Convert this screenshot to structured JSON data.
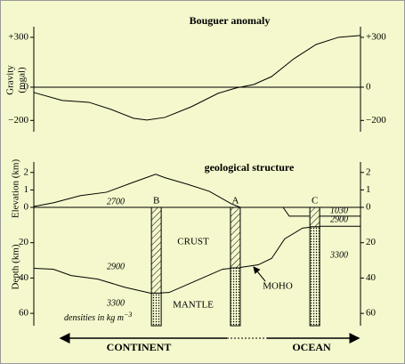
{
  "chart_data": [
    {
      "type": "line",
      "title": "Bouguer anomaly",
      "ylabel": [
        "Gravity",
        "(mgal)"
      ],
      "x": [
        0,
        8.7,
        16.9,
        23.7,
        30.5,
        34.6,
        40.1,
        48.2,
        56.4,
        61.9,
        67.3,
        72.8,
        79.6,
        86.4,
        93.2,
        100
      ],
      "series": [
        {
          "color": "#000000",
          "values": [
            -32,
            -80,
            -91,
            -134,
            -187,
            -198,
            -182,
            -118,
            -37,
            -5,
            16,
            64,
            171,
            257,
            300,
            311
          ]
        }
      ],
      "xlim": [
        0,
        100
      ],
      "ylim": [
        -268,
        364
      ],
      "yticks": [
        {
          "value": 300,
          "label": "+300"
        },
        0,
        {
          "value": -200,
          "label": "−200"
        }
      ]
    },
    {
      "type": "line",
      "title": "geological structure",
      "ylabel": "Elevation (km)",
      "x": [
        0,
        6,
        14.2,
        22.3,
        30.5,
        37.3,
        40.1,
        46.9,
        53.7,
        60.5,
        63.2,
        68.7
      ],
      "series": [
        {
          "color": "#000000",
          "values": [
            0.05,
            0.26,
            0.67,
            0.87,
            1.44,
            1.9,
            1.7,
            1.33,
            0.92,
            0.2,
            0,
            0
          ]
        }
      ],
      "xlim": [
        0,
        100
      ],
      "ylim": [
        0,
        2.6
      ],
      "yticks": [
        2,
        1,
        0
      ]
    },
    {
      "type": "depth",
      "ylabel": "Depth (km)",
      "series": [
        {
          "color": "#000000",
          "x": [
            0,
            6,
            11.4,
            19.6,
            27.8,
            36,
            41.4,
            49.6,
            57.8,
            63.2,
            68.7,
            72.8,
            76.8,
            82.3,
            87.7,
            100
          ],
          "values": [
            34.5,
            35,
            38.6,
            40.6,
            45.2,
            48.7,
            48.2,
            41.6,
            35,
            34,
            32.5,
            28.9,
            17.8,
            11.7,
            10.7,
            10.7
          ]
        },
        {
          "color": "#000000",
          "x": [
            68.7,
            76.3,
            78.2,
            100
          ],
          "values": [
            0,
            0,
            5,
            5
          ]
        }
      ],
      "xlim": [
        0,
        100
      ],
      "ylim": [
        0,
        67
      ],
      "yticks": [
        20,
        40,
        60
      ],
      "wells": [
        {
          "label": "B",
          "x": 37.5
        },
        {
          "label": "A",
          "x": 61.7
        },
        {
          "label": "C",
          "x": 86
        }
      ],
      "annotations": [
        "2700",
        "CRUST",
        "2900",
        "3300",
        "MANTLE",
        "MOHO",
        "1030",
        "2900",
        "3300"
      ],
      "note": {
        "text": "densities in kg m",
        "exponent": "−3"
      },
      "regions": [
        "CONTINENT",
        "OCEAN"
      ]
    }
  ]
}
